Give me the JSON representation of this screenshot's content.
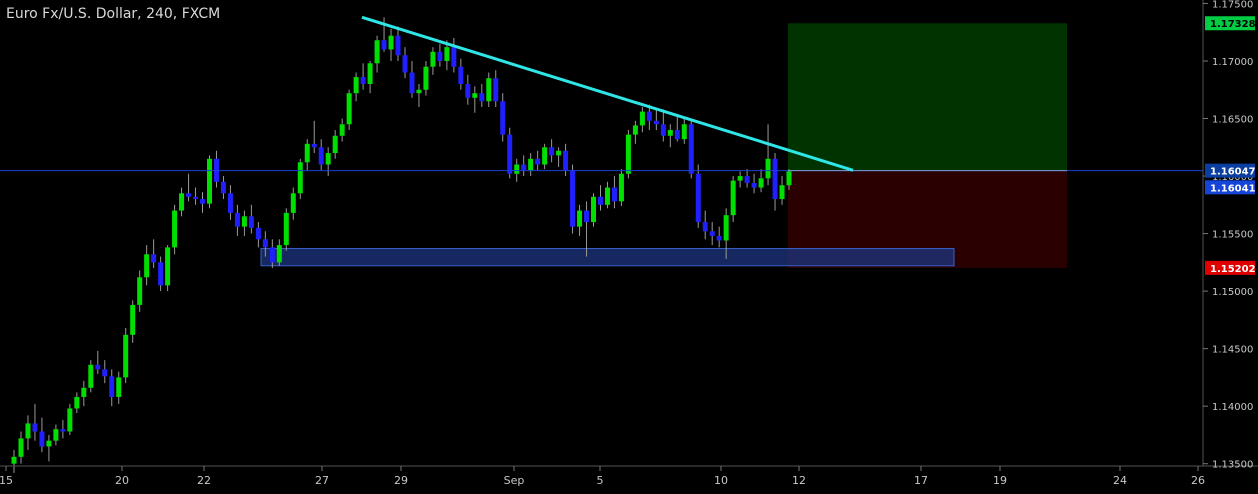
{
  "title": "Euro Fx/U.S. Dollar, 240, FXCM",
  "colors": {
    "background": "#000000",
    "candle_up": "#00e000",
    "candle_down": "#2020ff",
    "wick": "#9a9a9a",
    "trendline": "#2ee6e6",
    "price_line": "#1a3fd6",
    "support_zone": "#1c3580",
    "target_zone": "#003300",
    "stop_zone": "#2a0000",
    "axis_text": "#c8c8c8",
    "label_target": "#00cc44",
    "label_entry": "#0a3ea0",
    "label_current": "#1644d8",
    "label_stop": "#e00000"
  },
  "chart_data": {
    "type": "candlestick",
    "symbol": "Euro Fx/U.S. Dollar",
    "timeframe": "240",
    "source": "FXCM",
    "ylim": [
      1.1348,
      1.1753
    ],
    "y_ticks": [
      "1.17500",
      "1.17000",
      "1.16500",
      "1.16000",
      "1.15500",
      "1.15000",
      "1.14500",
      "1.14000",
      "1.13500"
    ],
    "x_ticks": [
      "15",
      "20",
      "22",
      "27",
      "29",
      "Sep",
      "5",
      "10",
      "12",
      "17",
      "19",
      "24",
      "26"
    ],
    "price_labels": {
      "target": "1.17328",
      "entry": "1.16047",
      "current": "1.16041",
      "stop": "1.15202"
    },
    "trendline": {
      "from": [
        "Aug 28",
        1.1738
      ],
      "to": [
        "Sep 14",
        1.1605
      ]
    },
    "support_zone": {
      "from": "Aug 24",
      "to": "Sep 18",
      "low": 1.1522,
      "high": 1.1537
    },
    "position": {
      "from": "Sep 11",
      "to": "Sep 21",
      "entry": 1.16047,
      "target": 1.17328,
      "stop": 1.15202
    },
    "candles_ohlc": [
      [
        1.135,
        1.1362,
        1.1342,
        1.1356
      ],
      [
        1.1356,
        1.1378,
        1.135,
        1.1372
      ],
      [
        1.1372,
        1.1392,
        1.1362,
        1.1385
      ],
      [
        1.1385,
        1.1402,
        1.137,
        1.1378
      ],
      [
        1.1378,
        1.139,
        1.136,
        1.1365
      ],
      [
        1.1365,
        1.1375,
        1.1352,
        1.137
      ],
      [
        1.137,
        1.1384,
        1.1366,
        1.138
      ],
      [
        1.138,
        1.1388,
        1.1372,
        1.1378
      ],
      [
        1.1378,
        1.1402,
        1.1375,
        1.1398
      ],
      [
        1.1398,
        1.1412,
        1.1394,
        1.1408
      ],
      [
        1.1408,
        1.1422,
        1.14,
        1.1416
      ],
      [
        1.1416,
        1.144,
        1.1412,
        1.1436
      ],
      [
        1.1436,
        1.1448,
        1.1428,
        1.1432
      ],
      [
        1.1432,
        1.144,
        1.142,
        1.1426
      ],
      [
        1.1426,
        1.1432,
        1.14,
        1.1408
      ],
      [
        1.1408,
        1.143,
        1.1402,
        1.1425
      ],
      [
        1.1425,
        1.1468,
        1.142,
        1.1462
      ],
      [
        1.1462,
        1.1492,
        1.1455,
        1.1488
      ],
      [
        1.1488,
        1.1518,
        1.1482,
        1.1512
      ],
      [
        1.1512,
        1.154,
        1.1505,
        1.1532
      ],
      [
        1.1532,
        1.1545,
        1.152,
        1.1525
      ],
      [
        1.1525,
        1.153,
        1.15,
        1.1505
      ],
      [
        1.1505,
        1.154,
        1.15,
        1.1538
      ],
      [
        1.1538,
        1.1575,
        1.1532,
        1.157
      ],
      [
        1.157,
        1.159,
        1.1565,
        1.1585
      ],
      [
        1.1585,
        1.1602,
        1.1578,
        1.1582
      ],
      [
        1.1582,
        1.159,
        1.1575,
        1.158
      ],
      [
        1.158,
        1.1586,
        1.1568,
        1.1576
      ],
      [
        1.1576,
        1.1618,
        1.1572,
        1.1615
      ],
      [
        1.1615,
        1.1622,
        1.159,
        1.1595
      ],
      [
        1.1595,
        1.16,
        1.158,
        1.1585
      ],
      [
        1.1585,
        1.1592,
        1.1562,
        1.1568
      ],
      [
        1.1568,
        1.1575,
        1.1548,
        1.1556
      ],
      [
        1.1556,
        1.157,
        1.1548,
        1.1565
      ],
      [
        1.1565,
        1.1575,
        1.155,
        1.1555
      ],
      [
        1.1555,
        1.156,
        1.1538,
        1.1545
      ],
      [
        1.1545,
        1.1552,
        1.153,
        1.1538
      ],
      [
        1.1538,
        1.1545,
        1.152,
        1.1525
      ],
      [
        1.1525,
        1.1545,
        1.1522,
        1.154
      ],
      [
        1.154,
        1.1572,
        1.1535,
        1.1568
      ],
      [
        1.1568,
        1.159,
        1.1562,
        1.1585
      ],
      [
        1.1585,
        1.1615,
        1.158,
        1.1612
      ],
      [
        1.1612,
        1.1632,
        1.1605,
        1.1628
      ],
      [
        1.1628,
        1.1648,
        1.162,
        1.1625
      ],
      [
        1.1625,
        1.1632,
        1.1605,
        1.161
      ],
      [
        1.161,
        1.1625,
        1.16,
        1.162
      ],
      [
        1.162,
        1.164,
        1.1615,
        1.1635
      ],
      [
        1.1635,
        1.165,
        1.163,
        1.1645
      ],
      [
        1.1645,
        1.1675,
        1.164,
        1.1672
      ],
      [
        1.1672,
        1.169,
        1.1665,
        1.1686
      ],
      [
        1.1686,
        1.1698,
        1.1675,
        1.168
      ],
      [
        1.168,
        1.17,
        1.1672,
        1.1698
      ],
      [
        1.1698,
        1.1722,
        1.169,
        1.1718
      ],
      [
        1.1718,
        1.1738,
        1.1708,
        1.171
      ],
      [
        1.171,
        1.1728,
        1.17,
        1.1722
      ],
      [
        1.1722,
        1.173,
        1.17,
        1.1705
      ],
      [
        1.1705,
        1.1712,
        1.1685,
        1.169
      ],
      [
        1.169,
        1.17,
        1.1668,
        1.1672
      ],
      [
        1.1672,
        1.168,
        1.166,
        1.1675
      ],
      [
        1.1675,
        1.17,
        1.167,
        1.1695
      ],
      [
        1.1695,
        1.1712,
        1.1688,
        1.1708
      ],
      [
        1.1708,
        1.1715,
        1.1695,
        1.17
      ],
      [
        1.17,
        1.1718,
        1.1692,
        1.1712
      ],
      [
        1.1712,
        1.172,
        1.169,
        1.1695
      ],
      [
        1.1695,
        1.1702,
        1.1675,
        1.168
      ],
      [
        1.168,
        1.1688,
        1.1662,
        1.1668
      ],
      [
        1.1668,
        1.1678,
        1.1655,
        1.1672
      ],
      [
        1.1672,
        1.168,
        1.166,
        1.1665
      ],
      [
        1.1665,
        1.169,
        1.166,
        1.1685
      ],
      [
        1.1685,
        1.1692,
        1.166,
        1.1665
      ],
      [
        1.1665,
        1.1672,
        1.163,
        1.1636
      ],
      [
        1.1636,
        1.1642,
        1.1598,
        1.1602
      ],
      [
        1.1602,
        1.1615,
        1.1595,
        1.161
      ],
      [
        1.161,
        1.1618,
        1.16,
        1.1605
      ],
      [
        1.1605,
        1.162,
        1.16,
        1.1615
      ],
      [
        1.1615,
        1.1622,
        1.1605,
        1.161
      ],
      [
        1.161,
        1.1628,
        1.1606,
        1.1625
      ],
      [
        1.1625,
        1.1632,
        1.1612,
        1.1618
      ],
      [
        1.1618,
        1.1625,
        1.1608,
        1.1622
      ],
      [
        1.1622,
        1.1628,
        1.16,
        1.1605
      ],
      [
        1.1605,
        1.161,
        1.155,
        1.1556
      ],
      [
        1.1556,
        1.1575,
        1.1548,
        1.157
      ],
      [
        1.157,
        1.1578,
        1.153,
        1.156
      ],
      [
        1.156,
        1.1585,
        1.1556,
        1.1582
      ],
      [
        1.1582,
        1.1592,
        1.157,
        1.1575
      ],
      [
        1.1575,
        1.1595,
        1.1572,
        1.159
      ],
      [
        1.159,
        1.16,
        1.1572,
        1.1578
      ],
      [
        1.1578,
        1.1606,
        1.1574,
        1.1602
      ],
      [
        1.1602,
        1.164,
        1.1598,
        1.1636
      ],
      [
        1.1636,
        1.1648,
        1.1628,
        1.1644
      ],
      [
        1.1644,
        1.166,
        1.1638,
        1.1656
      ],
      [
        1.1656,
        1.1662,
        1.164,
        1.1648
      ],
      [
        1.1648,
        1.1658,
        1.164,
        1.1645
      ],
      [
        1.1645,
        1.1658,
        1.163,
        1.1635
      ],
      [
        1.1635,
        1.1645,
        1.1625,
        1.164
      ],
      [
        1.164,
        1.1652,
        1.163,
        1.1632
      ],
      [
        1.1632,
        1.165,
        1.1628,
        1.1645
      ],
      [
        1.1645,
        1.165,
        1.1598,
        1.1602
      ],
      [
        1.1602,
        1.161,
        1.1555,
        1.156
      ],
      [
        1.156,
        1.157,
        1.1545,
        1.1552
      ],
      [
        1.1552,
        1.156,
        1.154,
        1.1548
      ],
      [
        1.1548,
        1.1556,
        1.1538,
        1.1544
      ],
      [
        1.1544,
        1.1572,
        1.1528,
        1.1566
      ],
      [
        1.1566,
        1.16,
        1.156,
        1.1596
      ],
      [
        1.1596,
        1.1604,
        1.159,
        1.16
      ],
      [
        1.16,
        1.1606,
        1.159,
        1.1594
      ],
      [
        1.1594,
        1.1602,
        1.1585,
        1.159
      ],
      [
        1.159,
        1.1606,
        1.1586,
        1.1598
      ],
      [
        1.1598,
        1.1645,
        1.1592,
        1.1615
      ],
      [
        1.1615,
        1.162,
        1.157,
        1.158
      ],
      [
        1.158,
        1.16,
        1.1575,
        1.1592
      ],
      [
        1.1592,
        1.1606,
        1.1588,
        1.16041
      ]
    ]
  }
}
